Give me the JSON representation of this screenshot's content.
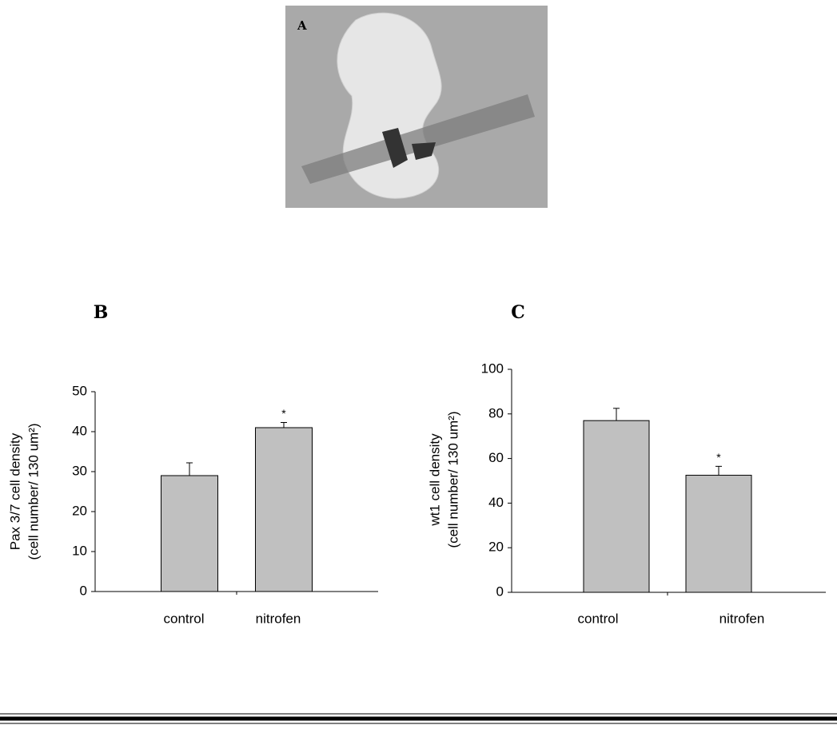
{
  "figure": {
    "panel_a_label": "A"
  },
  "chart_data": [
    {
      "type": "bar",
      "panel_label": "B",
      "ylabel": [
        "Pax 3/7 cell density",
        "(cell number/ 130 um²)"
      ],
      "categories": [
        "control",
        "nitrofen"
      ],
      "values": [
        29,
        41
      ],
      "errors": [
        3.2,
        1.3
      ],
      "color": "#c0c0c0",
      "ylim": [
        0,
        50
      ],
      "yticks": [
        0,
        10,
        20,
        30,
        40,
        50
      ],
      "annotations": [
        {
          "text": "*",
          "category": "nitrofen"
        }
      ]
    },
    {
      "type": "bar",
      "panel_label": "C",
      "ylabel": [
        "wt1 cell density",
        "(cell number/ 130 um²)"
      ],
      "categories": [
        "control",
        "nitrofen"
      ],
      "values": [
        77,
        52.5
      ],
      "errors": [
        5.5,
        4
      ],
      "color": "#c0c0c0",
      "ylim": [
        0,
        100
      ],
      "yticks": [
        0,
        20,
        40,
        60,
        80,
        100
      ],
      "annotations": [
        {
          "text": "*",
          "category": "nitrofen"
        }
      ]
    }
  ]
}
